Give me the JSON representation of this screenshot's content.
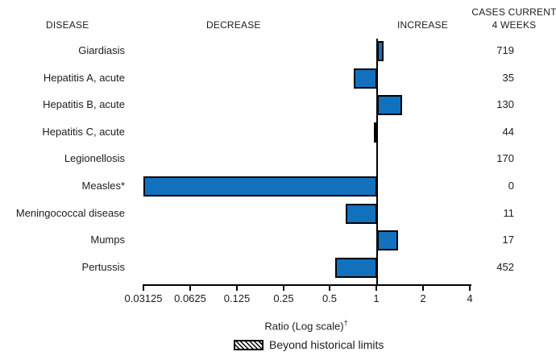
{
  "header": {
    "disease": "DISEASE",
    "decrease": "DECREASE",
    "increase": "INCREASE",
    "cases_line1": "CASES CURRENT",
    "cases_line2": "4 WEEKS"
  },
  "axis": {
    "title": "Ratio (Log scale)",
    "title_sup": "†"
  },
  "legend": {
    "swatch": "hatched-box",
    "label": "Beyond historical limits"
  },
  "colors": {
    "bar_fill": "#1271bd",
    "bar_border": "#000000",
    "line": "#000000",
    "text": "#1c1c1c"
  },
  "chart_data": {
    "type": "bar",
    "orientation": "horizontal",
    "x_scale": "log2",
    "baseline": 1,
    "xlabel": "Ratio (Log scale)†",
    "x_ticks": [
      0.03125,
      0.0625,
      0.125,
      0.25,
      0.5,
      1,
      2,
      4
    ],
    "x_tick_labels": [
      "0.03125",
      "0.0625",
      "0.125",
      "0.25",
      "0.5",
      "1",
      "2",
      "4"
    ],
    "xlim": [
      0.03125,
      4
    ],
    "legend_entries": [
      "Beyond historical limits"
    ],
    "rows": [
      {
        "disease": "Giardiasis",
        "ratio": 1.11,
        "cases": 719,
        "beyond_historical_limits": false
      },
      {
        "disease": "Hepatitis A, acute",
        "ratio": 0.71,
        "cases": 35,
        "beyond_historical_limits": false
      },
      {
        "disease": "Hepatitis B, acute",
        "ratio": 1.47,
        "cases": 130,
        "beyond_historical_limits": false
      },
      {
        "disease": "Hepatitis C, acute",
        "ratio": 0.96,
        "cases": 44,
        "beyond_historical_limits": false
      },
      {
        "disease": "Legionellosis",
        "ratio": 1.0,
        "cases": 170,
        "beyond_historical_limits": false
      },
      {
        "disease": "Measles*",
        "ratio": 0.03125,
        "cases": 0,
        "beyond_historical_limits": false
      },
      {
        "disease": "Meningococcal disease",
        "ratio": 0.63,
        "cases": 11,
        "beyond_historical_limits": false
      },
      {
        "disease": "Mumps",
        "ratio": 1.38,
        "cases": 17,
        "beyond_historical_limits": false
      },
      {
        "disease": "Pertussis",
        "ratio": 0.54,
        "cases": 452,
        "beyond_historical_limits": false
      }
    ]
  }
}
